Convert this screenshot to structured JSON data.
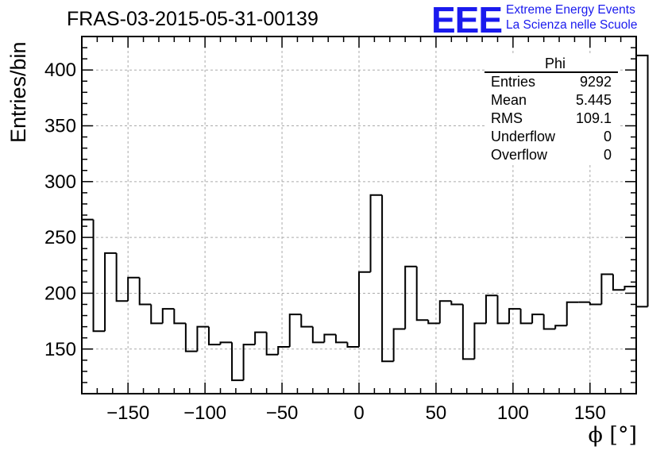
{
  "header": {
    "title": "FRAS-03-2015-05-31-00139",
    "logo_text": "EEE",
    "logo_line1": "Extreme Energy Events",
    "logo_line2": "La Scienza nelle Scuole",
    "brand_color": "#1a1aee"
  },
  "stats": {
    "title": "Phi",
    "rows": [
      {
        "label": "Entries",
        "value": "9292"
      },
      {
        "label": "Mean",
        "value": "5.445"
      },
      {
        "label": "RMS",
        "value": "109.1"
      },
      {
        "label": "Underflow",
        "value": "0"
      },
      {
        "label": "Overflow",
        "value": "0"
      }
    ]
  },
  "chart_data": {
    "type": "histogram",
    "xlabel": "ϕ [°]",
    "ylabel": "Entries/bin",
    "xlim": [
      -180,
      180
    ],
    "ylim": [
      110,
      430
    ],
    "xticks": [
      -150,
      -100,
      -50,
      0,
      50,
      100,
      150
    ],
    "yticks": [
      150,
      200,
      250,
      300,
      350,
      400
    ],
    "grid": true,
    "bin_width": 7.5,
    "bin_edges_start": -180,
    "values": [
      266,
      166,
      236,
      193,
      214,
      190,
      173,
      186,
      173,
      148,
      170,
      154,
      156,
      122,
      154,
      165,
      145,
      152,
      181,
      170,
      156,
      163,
      156,
      152,
      219,
      288,
      139,
      168,
      224,
      176,
      173,
      193,
      190,
      141,
      173,
      198,
      173,
      186,
      173,
      181,
      168,
      171,
      192,
      192,
      190,
      217,
      203,
      206,
      188
    ],
    "tail_value": 413
  }
}
